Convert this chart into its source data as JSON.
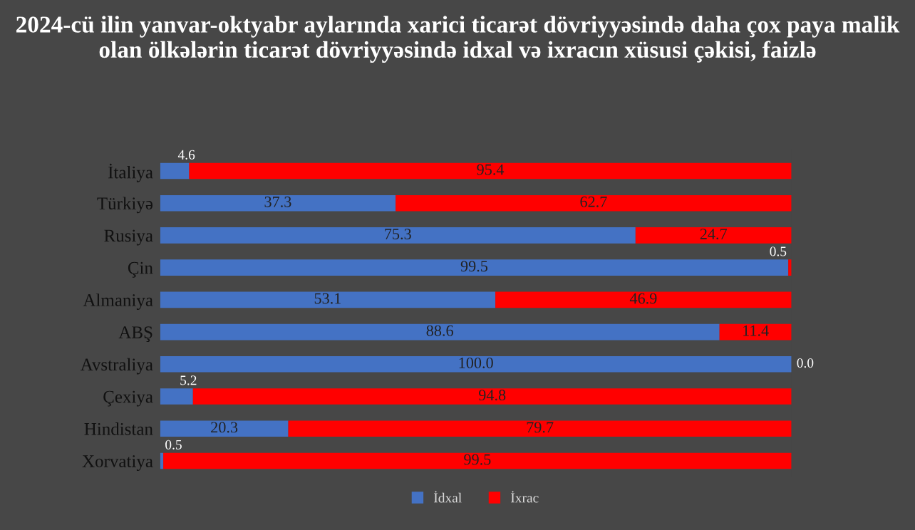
{
  "chart_data": {
    "type": "bar",
    "orientation": "horizontal",
    "stacked": true,
    "title": "2024-cü ilin yanvar-oktyabr aylarında xarici ticarət dövriyyəsində daha çox paya malik olan ölkələrin ticarət dövriyyəsində idxal və ixracın xüsusi çəkisi, faizlə",
    "categories": [
      "İtaliya",
      "Türkiyə",
      "Rusiya",
      "Çin",
      "Almaniya",
      "ABŞ",
      "Avstraliya",
      "Çexiya",
      "Hindistan",
      "Xorvatiya"
    ],
    "series": [
      {
        "name": "İdxal",
        "color": "#4472c4",
        "values": [
          4.6,
          37.3,
          75.3,
          99.5,
          53.1,
          88.6,
          100.0,
          5.2,
          20.3,
          0.5
        ],
        "value_labels": [
          "4.6",
          "37.3",
          "75.3",
          "99.5",
          "53.1",
          "88.6",
          "100.0",
          "5.2",
          "20.3",
          "0.5"
        ]
      },
      {
        "name": "İxrac",
        "color": "#ff0000",
        "values": [
          95.4,
          62.7,
          24.7,
          0.5,
          46.9,
          11.4,
          0.0,
          94.8,
          79.7,
          99.5
        ],
        "value_labels": [
          "95.4",
          "62.7",
          "24.7",
          "0.5",
          "46.9",
          "11.4",
          "0.0",
          "94.8",
          "79.7",
          "99.5"
        ]
      }
    ],
    "legend": "bottom",
    "grid": false
  }
}
